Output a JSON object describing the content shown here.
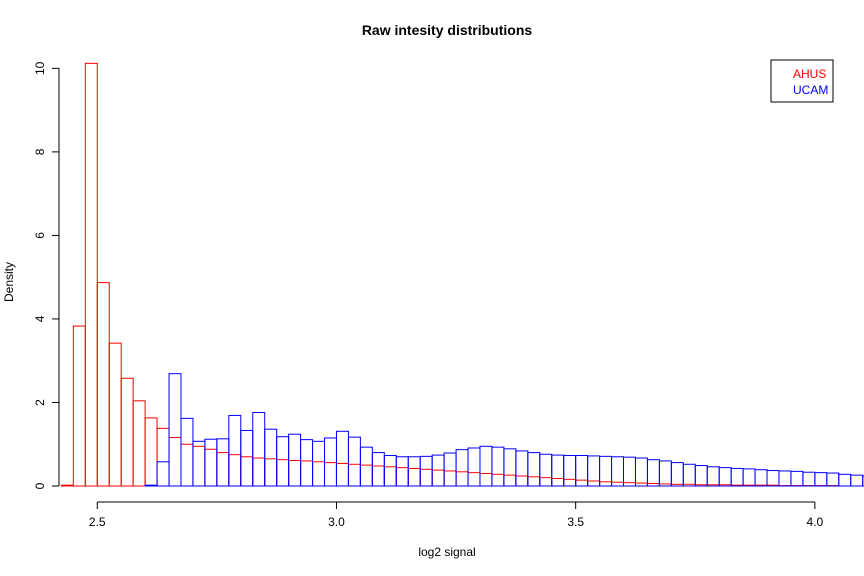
{
  "chart_data": {
    "type": "histogram",
    "title": "Raw intesity distributions",
    "xlabel": "log2 signal",
    "ylabel": "Density",
    "xlim": [
      2.42,
      4.04
    ],
    "ylim": [
      0,
      10.2
    ],
    "x_ticks": [
      2.5,
      3.0,
      3.5,
      4.0
    ],
    "x_tick_labels": [
      "2.5",
      "3.0",
      "3.5",
      "4.0"
    ],
    "y_ticks": [
      0,
      2,
      4,
      6,
      8,
      10
    ],
    "y_tick_labels": [
      "0",
      "2",
      "4",
      "6",
      "8",
      "10"
    ],
    "bin_width": 0.025,
    "legend": {
      "position": "top-right",
      "entries": [
        "AHUS",
        "UCAM"
      ]
    },
    "series": [
      {
        "name": "AHUS",
        "color": "#ff0000",
        "start": 2.425,
        "values": [
          0.02,
          3.83,
          10.12,
          4.87,
          3.42,
          2.58,
          2.04,
          1.63,
          1.38,
          1.16,
          1.0,
          0.95,
          0.88,
          0.8,
          0.75,
          0.7,
          0.67,
          0.65,
          0.63,
          0.61,
          0.6,
          0.58,
          0.56,
          0.54,
          0.52,
          0.5,
          0.48,
          0.46,
          0.44,
          0.42,
          0.4,
          0.38,
          0.36,
          0.34,
          0.32,
          0.3,
          0.28,
          0.26,
          0.24,
          0.22,
          0.2,
          0.18,
          0.16,
          0.14,
          0.12,
          0.1,
          0.09,
          0.08,
          0.07,
          0.06,
          0.05,
          0.04,
          0.04,
          0.03,
          0.03,
          0.03,
          0.02,
          0.02,
          0.02,
          0.02,
          0.01,
          0.01,
          0.01,
          0.01,
          0.01
        ]
      },
      {
        "name": "UCAM",
        "color": "#0000ff",
        "start": 2.6,
        "values": [
          0.02,
          0.58,
          2.69,
          1.62,
          1.07,
          1.12,
          1.13,
          1.69,
          1.33,
          1.76,
          1.36,
          1.18,
          1.24,
          1.11,
          1.07,
          1.15,
          1.31,
          1.17,
          0.93,
          0.8,
          0.73,
          0.7,
          0.7,
          0.71,
          0.74,
          0.79,
          0.87,
          0.91,
          0.95,
          0.93,
          0.89,
          0.84,
          0.8,
          0.76,
          0.74,
          0.73,
          0.73,
          0.72,
          0.71,
          0.7,
          0.69,
          0.67,
          0.63,
          0.6,
          0.56,
          0.52,
          0.49,
          0.46,
          0.44,
          0.42,
          0.41,
          0.39,
          0.37,
          0.36,
          0.35,
          0.33,
          0.32,
          0.31,
          0.28,
          0.26,
          0.24,
          0.2,
          0.16,
          0.13,
          0.11,
          0.09,
          0.08,
          0.07,
          0.06,
          0.05,
          0.04,
          0.03,
          0.02,
          0.02,
          0.01,
          0.01,
          0.01,
          0.0
        ]
      }
    ]
  }
}
